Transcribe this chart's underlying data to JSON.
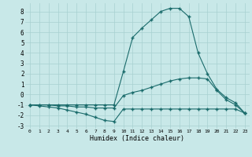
{
  "xlabel": "Humidex (Indice chaleur)",
  "bg_color": "#c8e8e8",
  "grid_color": "#a8d0d0",
  "line_color": "#1a6b6b",
  "xlim": [
    -0.5,
    23.5
  ],
  "ylim": [
    -3.3,
    8.8
  ],
  "xticks": [
    0,
    1,
    2,
    3,
    4,
    5,
    6,
    7,
    8,
    9,
    10,
    11,
    12,
    13,
    14,
    15,
    16,
    17,
    18,
    19,
    20,
    21,
    22,
    23
  ],
  "yticks": [
    -3,
    -2,
    -1,
    0,
    1,
    2,
    3,
    4,
    5,
    6,
    7,
    8
  ],
  "series": [
    {
      "x": [
        0,
        1,
        2,
        3,
        4,
        5,
        6,
        7,
        8,
        9,
        10,
        11,
        12,
        13,
        14,
        15,
        16,
        17,
        18,
        19,
        20,
        21,
        22,
        23
      ],
      "y": [
        -1.0,
        -1.1,
        -1.2,
        -1.3,
        -1.5,
        -1.7,
        -1.9,
        -2.2,
        -2.5,
        -2.6,
        -1.4,
        -1.4,
        -1.4,
        -1.4,
        -1.4,
        -1.4,
        -1.4,
        -1.4,
        -1.4,
        -1.4,
        -1.4,
        -1.4,
        -1.4,
        -1.8
      ]
    },
    {
      "x": [
        0,
        1,
        2,
        3,
        4,
        5,
        6,
        7,
        8,
        9,
        10,
        11,
        12,
        13,
        14,
        15,
        16,
        17,
        18,
        19,
        20,
        21,
        22,
        23
      ],
      "y": [
        -1.0,
        -1.0,
        -1.0,
        -1.1,
        -1.1,
        -1.2,
        -1.2,
        -1.3,
        -1.3,
        -1.3,
        -0.1,
        0.2,
        0.4,
        0.7,
        1.0,
        1.3,
        1.5,
        1.6,
        1.6,
        1.5,
        0.4,
        -0.5,
        -1.0,
        -1.8
      ]
    },
    {
      "x": [
        0,
        1,
        2,
        3,
        4,
        5,
        6,
        7,
        8,
        9,
        10,
        11,
        12,
        13,
        14,
        15,
        16,
        17,
        18,
        19,
        20,
        21,
        22,
        23
      ],
      "y": [
        -1.0,
        -1.0,
        -1.0,
        -1.0,
        -1.0,
        -1.0,
        -1.0,
        -1.0,
        -1.0,
        -1.0,
        2.2,
        5.5,
        6.4,
        7.2,
        8.0,
        8.3,
        8.3,
        7.5,
        4.0,
        2.0,
        0.5,
        -0.3,
        -0.8,
        -1.8
      ]
    }
  ]
}
